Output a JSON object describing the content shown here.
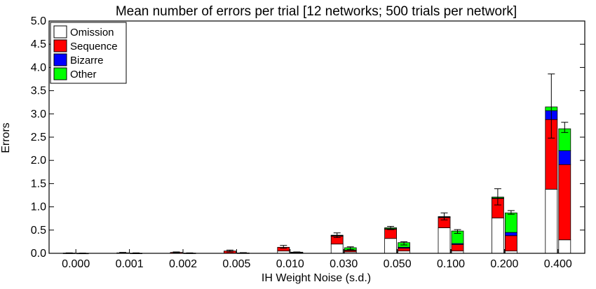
{
  "chart_data": {
    "type": "bar",
    "title": "Mean number of errors per trial [12 networks; 500 trials per network]",
    "xlabel": "IH Weight Noise (s.d.)",
    "ylabel": "Errors",
    "ylim": [
      0,
      5
    ],
    "yticks": [
      "0.0",
      "0.5",
      "1.0",
      "1.5",
      "2.0",
      "2.5",
      "3.0",
      "3.5",
      "4.0",
      "4.5",
      "5.0"
    ],
    "categories": [
      "0.000",
      "0.001",
      "0.002",
      "0.005",
      "0.010",
      "0.030",
      "0.050",
      "0.100",
      "0.200",
      "0.400"
    ],
    "bars_per_category": 2,
    "stacked": true,
    "legend_position": "top-left",
    "grid": false,
    "series": [
      {
        "name": "Omission",
        "color": "#ffffff",
        "values": [
          [
            0.0,
            0.0
          ],
          [
            0.0,
            0.0
          ],
          [
            0.0,
            0.0
          ],
          [
            0.0,
            0.0
          ],
          [
            0.05,
            0.01
          ],
          [
            0.2,
            0.03
          ],
          [
            0.32,
            0.05
          ],
          [
            0.55,
            0.05
          ],
          [
            0.76,
            0.05
          ],
          [
            1.38,
            0.29
          ]
        ]
      },
      {
        "name": "Sequence",
        "color": "#ff0000",
        "values": [
          [
            0.005,
            0.002
          ],
          [
            0.01,
            0.003
          ],
          [
            0.02,
            0.005
          ],
          [
            0.05,
            0.008
          ],
          [
            0.08,
            0.01
          ],
          [
            0.17,
            0.03
          ],
          [
            0.2,
            0.06
          ],
          [
            0.22,
            0.14
          ],
          [
            0.42,
            0.33
          ],
          [
            1.5,
            1.62
          ]
        ]
      },
      {
        "name": "Bizarre",
        "color": "#0000ff",
        "values": [
          [
            0.0,
            0.0
          ],
          [
            0.0,
            0.0
          ],
          [
            0.0,
            0.0
          ],
          [
            0.0,
            0.0
          ],
          [
            0.0,
            0.0
          ],
          [
            0.01,
            0.01
          ],
          [
            0.01,
            0.02
          ],
          [
            0.01,
            0.02
          ],
          [
            0.01,
            0.07
          ],
          [
            0.19,
            0.3
          ]
        ]
      },
      {
        "name": "Other",
        "color": "#00ff00",
        "values": [
          [
            0.0,
            0.0
          ],
          [
            0.0,
            0.0
          ],
          [
            0.0,
            0.0
          ],
          [
            0.0,
            0.0
          ],
          [
            0.0,
            0.005
          ],
          [
            0.01,
            0.05
          ],
          [
            0.02,
            0.1
          ],
          [
            0.01,
            0.27
          ],
          [
            0.02,
            0.42
          ],
          [
            0.08,
            0.47
          ]
        ]
      }
    ],
    "error_bars": [
      [
        [
          0.0,
          0.01
        ],
        [
          0.0,
          0.005
        ]
      ],
      [
        [
          0.0,
          0.02
        ],
        [
          0.0,
          0.01
        ]
      ],
      [
        [
          0.01,
          0.03
        ],
        [
          0.0,
          0.01
        ]
      ],
      [
        [
          0.03,
          0.07
        ],
        [
          0.0,
          0.015
        ]
      ],
      [
        [
          0.11,
          0.17
        ],
        [
          0.01,
          0.03
        ]
      ],
      [
        [
          0.34,
          0.44
        ],
        [
          0.08,
          0.14
        ]
      ],
      [
        [
          0.51,
          0.58
        ],
        [
          0.18,
          0.25
        ]
      ],
      [
        [
          0.72,
          0.87
        ],
        [
          0.43,
          0.51
        ]
      ],
      [
        [
          1.04,
          1.39
        ],
        [
          0.84,
          0.92
        ]
      ],
      [
        [
          2.48,
          3.86
        ],
        [
          2.6,
          2.82
        ]
      ]
    ]
  }
}
